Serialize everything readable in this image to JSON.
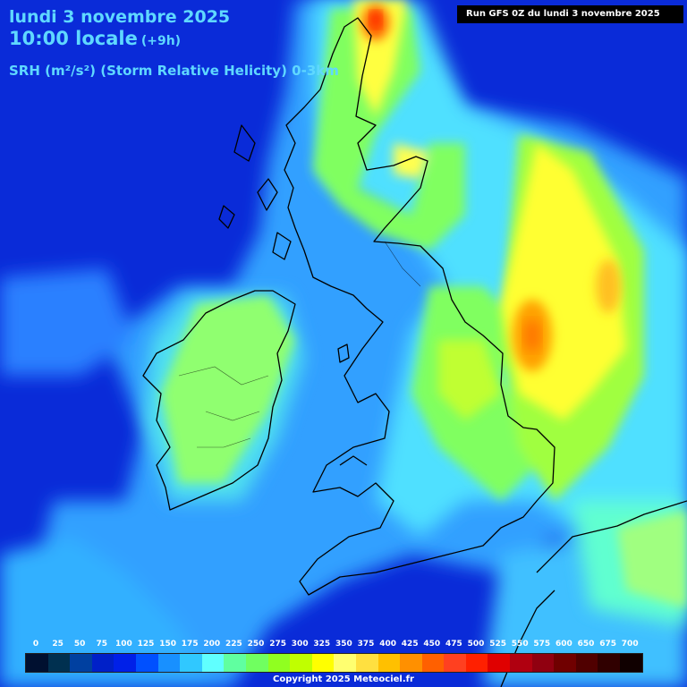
{
  "header": {
    "date_line": "lundi 3 novembre 2025",
    "time_line": "10:00 locale",
    "lead_time": "(+9h)",
    "parameter": "SRH (m²/s²) (Storm Relative Helicity) 0-3km",
    "run_info": "Run GFS 0Z du lundi 3 novembre 2025"
  },
  "legend": {
    "labels": [
      "0",
      "25",
      "50",
      "75",
      "100",
      "125",
      "150",
      "175",
      "200",
      "225",
      "250",
      "275",
      "300",
      "325",
      "350",
      "375",
      "400",
      "425",
      "450",
      "475",
      "500",
      "525",
      "550",
      "575",
      "600",
      "650",
      "675",
      "700"
    ],
    "colors": [
      "#001030",
      "#003050",
      "#0040a0",
      "#0020c8",
      "#0020e8",
      "#0050ff",
      "#1890ff",
      "#30c8ff",
      "#60ffff",
      "#60ffa0",
      "#70ff60",
      "#90ff20",
      "#c0ff00",
      "#ffff00",
      "#ffff70",
      "#ffe040",
      "#ffc000",
      "#ff9000",
      "#ff6000",
      "#ff4020",
      "#ff2000",
      "#e00000",
      "#b00010",
      "#900010",
      "#700000",
      "#500000",
      "#300000",
      "#100000"
    ]
  },
  "footer": {
    "copyright": "Copyright 2025 Meteociel.fr"
  }
}
